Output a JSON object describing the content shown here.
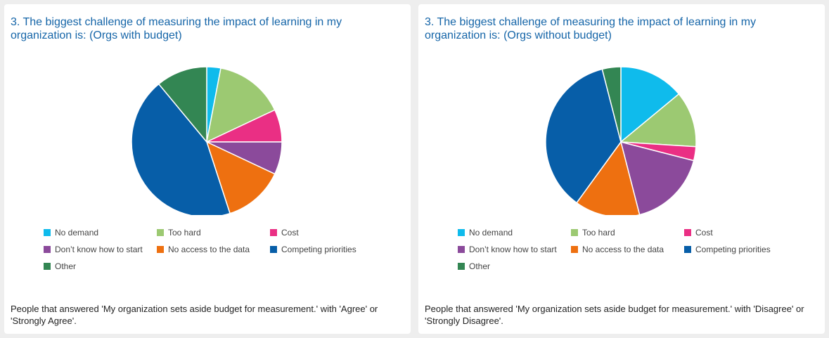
{
  "chart_data": [
    {
      "type": "pie",
      "title": "3. The biggest challenge of measuring the impact of learning in my organization is: (Orgs with budget)",
      "categories": [
        "No demand",
        "Too hard",
        "Cost",
        "Don’t know how to start",
        "No access to the data",
        "Competing priorities",
        "Other"
      ],
      "values": [
        3,
        15,
        7,
        7,
        13,
        44,
        11
      ],
      "colors": [
        "#0fbbec",
        "#9cc972",
        "#ea2f84",
        "#8b4a9b",
        "#ee7010",
        "#075ea8",
        "#338653"
      ],
      "legend_position": "bottom",
      "footnote": "People that answered 'My organization sets aside budget for measurement.' with 'Agree' or 'Strongly Agree'."
    },
    {
      "type": "pie",
      "title": "3. The biggest challenge of measuring the impact of learning in my organization is: (Orgs without budget)",
      "categories": [
        "No demand",
        "Too hard",
        "Cost",
        "Don’t know how to start",
        "No access to the data",
        "Competing priorities",
        "Other"
      ],
      "values": [
        14,
        12,
        3,
        17,
        14,
        36,
        4
      ],
      "colors": [
        "#0fbbec",
        "#9cc972",
        "#ea2f84",
        "#8b4a9b",
        "#ee7010",
        "#075ea8",
        "#338653"
      ],
      "legend_position": "bottom",
      "footnote": "People that answered 'My organization sets aside budget for measurement.' with 'Disagree' or 'Strongly Disagree'."
    }
  ]
}
